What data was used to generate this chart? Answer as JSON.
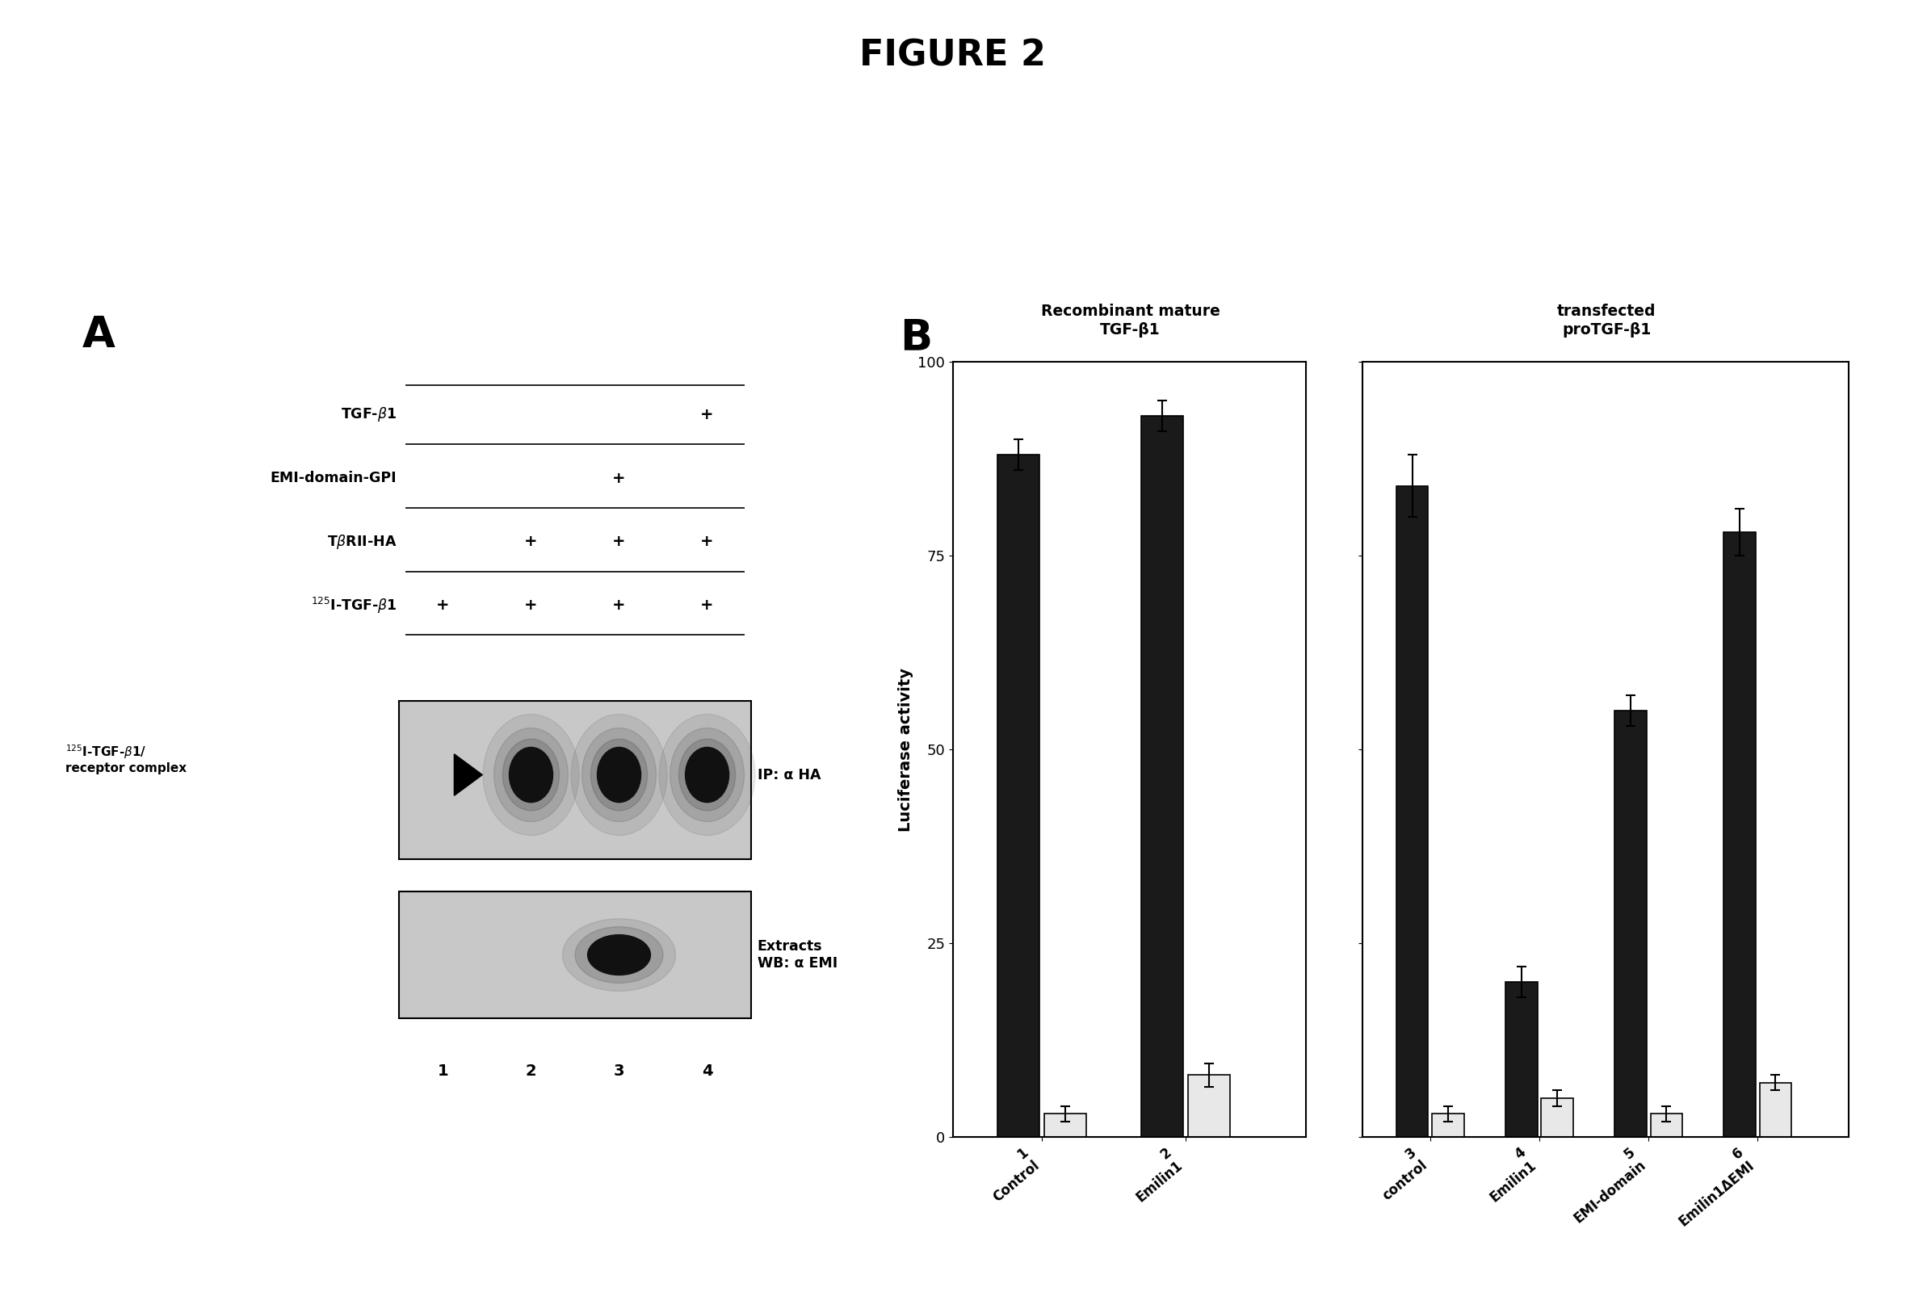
{
  "title": "FIGURE 2",
  "title_fontsize": 32,
  "title_fontweight": "bold",
  "panel_A_label": "A",
  "panel_B_label": "B",
  "gel_plus": {
    "0": [
      3
    ],
    "1": [
      2
    ],
    "2": [
      1,
      2,
      3
    ],
    "3": [
      0,
      1,
      2,
      3
    ]
  },
  "ip_label": "IP: α HA",
  "wb_label": "Extracts\nWB: α EMI",
  "bar_groups": [
    {
      "id": 1,
      "label": "Control",
      "panel": "left",
      "dark_val": 88,
      "light_val": 3,
      "dark_err": 2,
      "light_err": 1
    },
    {
      "id": 2,
      "label": "Emilin1",
      "panel": "left",
      "dark_val": 93,
      "light_val": 8,
      "dark_err": 2,
      "light_err": 1.5
    },
    {
      "id": 3,
      "label": "control",
      "panel": "right",
      "dark_val": 84,
      "light_val": 3,
      "dark_err": 4,
      "light_err": 1
    },
    {
      "id": 4,
      "label": "Emilin1",
      "panel": "right",
      "dark_val": 20,
      "light_val": 5,
      "dark_err": 2,
      "light_err": 1
    },
    {
      "id": 5,
      "label": "EMI-domain",
      "panel": "right",
      "dark_val": 55,
      "light_val": 3,
      "dark_err": 2,
      "light_err": 1
    },
    {
      "id": 6,
      "label": "Emilin1ΔEMI",
      "panel": "right",
      "dark_val": 78,
      "light_val": 7,
      "dark_err": 3,
      "light_err": 1
    }
  ],
  "ylabel_B": "Luciferase activity",
  "ylim_B": [
    0,
    100
  ],
  "yticks_B": [
    0,
    25,
    50,
    75,
    100
  ],
  "left_title_line1": "Recombinant mature",
  "left_title_line2": "TGF-β1",
  "right_title_line1": "transfected",
  "right_title_line2": "proTGF-β1",
  "dark_color": "#1a1a1a",
  "light_color": "#e8e8e8",
  "bar_edge_color": "#000000",
  "bg_color": "#ffffff",
  "text_color": "#000000"
}
